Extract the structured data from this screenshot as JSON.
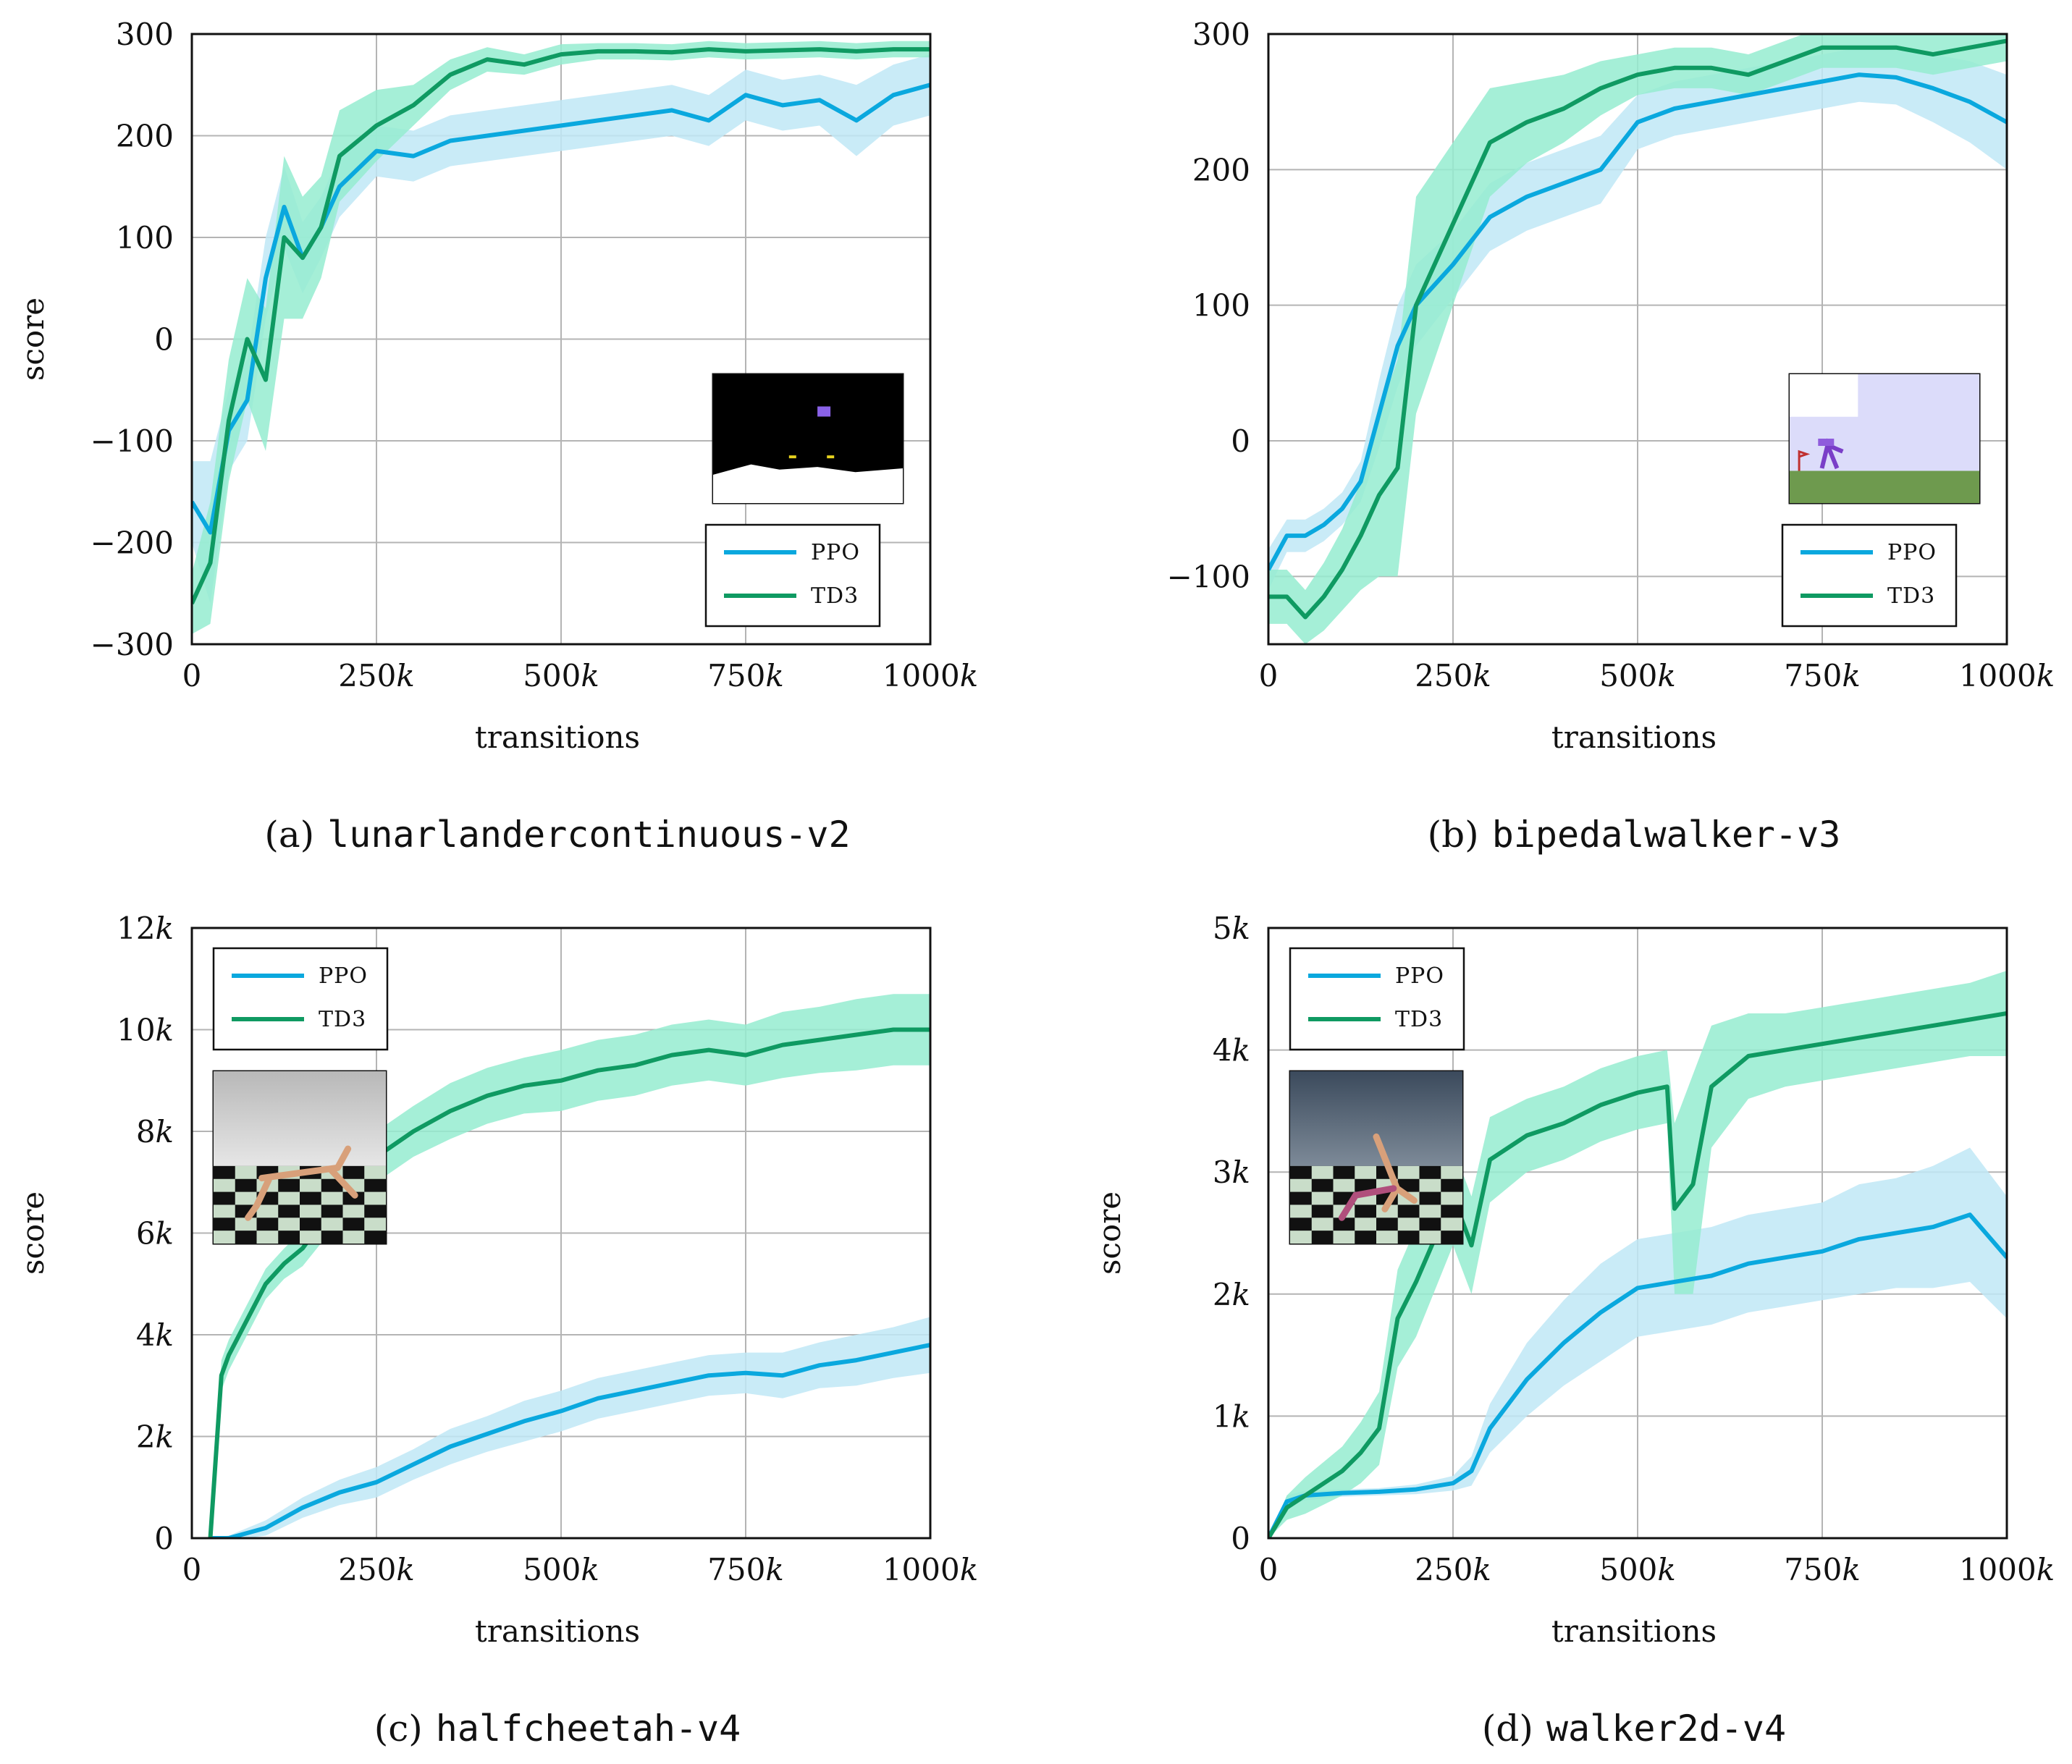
{
  "figure": {
    "colors": {
      "ppo": "#0aa8de",
      "ppo_band": "#bfe8f6",
      "td3": "#0f9a62",
      "td3_band": "#95ecd0",
      "grid": "#b4b4b4"
    }
  },
  "chart_data": [
    {
      "id": "a",
      "type": "line",
      "title": "",
      "caption_prefix": "(a)",
      "caption_env": "lunarlandercontinuous-v2",
      "xlabel": "transitions",
      "ylabel": "score",
      "xlim": [
        0,
        1000000
      ],
      "ylim": [
        -300,
        300
      ],
      "xticks": [
        0,
        250000,
        500000,
        750000,
        1000000
      ],
      "xtick_labels": [
        "0",
        "250k",
        "500k",
        "750k",
        "1000k"
      ],
      "yticks": [
        -300,
        -200,
        -100,
        0,
        100,
        200,
        300
      ],
      "ytick_labels": [
        "−300",
        "−200",
        "−100",
        "0",
        "100",
        "200",
        "300"
      ],
      "legend": {
        "position": "bottom-right",
        "entries": [
          "PPO",
          "TD3"
        ]
      },
      "inset": {
        "position": "right",
        "scene": "lunar lander"
      },
      "series": [
        {
          "name": "PPO",
          "color": "#0aa8de",
          "x": [
            0,
            25000,
            50000,
            75000,
            100000,
            125000,
            150000,
            175000,
            200000,
            250000,
            300000,
            350000,
            400000,
            450000,
            500000,
            550000,
            600000,
            650000,
            700000,
            750000,
            800000,
            850000,
            900000,
            950000,
            1000000
          ],
          "values": [
            -160,
            -190,
            -90,
            -60,
            60,
            130,
            80,
            110,
            150,
            185,
            180,
            195,
            200,
            205,
            210,
            215,
            220,
            225,
            215,
            240,
            230,
            235,
            215,
            240,
            250
          ],
          "band": [
            40,
            70,
            40,
            40,
            40,
            40,
            35,
            30,
            30,
            25,
            25,
            25,
            25,
            25,
            25,
            25,
            25,
            25,
            25,
            25,
            25,
            25,
            35,
            30,
            30
          ]
        },
        {
          "name": "TD3",
          "color": "#0f9a62",
          "x": [
            0,
            25000,
            50000,
            75000,
            100000,
            125000,
            150000,
            175000,
            200000,
            250000,
            300000,
            350000,
            400000,
            450000,
            500000,
            550000,
            600000,
            650000,
            700000,
            750000,
            800000,
            850000,
            900000,
            950000,
            1000000
          ],
          "values": [
            -260,
            -220,
            -80,
            0,
            -40,
            100,
            80,
            110,
            180,
            210,
            230,
            260,
            275,
            270,
            280,
            283,
            283,
            282,
            285,
            283,
            284,
            285,
            283,
            285,
            285
          ],
          "band": [
            30,
            60,
            60,
            60,
            70,
            80,
            60,
            50,
            45,
            35,
            20,
            15,
            12,
            10,
            10,
            8,
            8,
            8,
            8,
            8,
            8,
            8,
            8,
            8,
            8
          ]
        }
      ]
    },
    {
      "id": "b",
      "type": "line",
      "title": "",
      "caption_prefix": "(b)",
      "caption_env": "bipedalwalker-v3",
      "xlabel": "transitions",
      "ylabel": "",
      "xlim": [
        0,
        1000000
      ],
      "ylim": [
        -150,
        300
      ],
      "xticks": [
        0,
        250000,
        500000,
        750000,
        1000000
      ],
      "xtick_labels": [
        "0",
        "250k",
        "500k",
        "750k",
        "1000k"
      ],
      "yticks": [
        -100,
        0,
        100,
        200,
        300
      ],
      "ytick_labels": [
        "−100",
        "0",
        "100",
        "200",
        "300"
      ],
      "legend": {
        "position": "bottom-right",
        "entries": [
          "PPO",
          "TD3"
        ]
      },
      "inset": {
        "position": "right",
        "scene": "bipedal walker"
      },
      "series": [
        {
          "name": "PPO",
          "color": "#0aa8de",
          "x": [
            0,
            25000,
            50000,
            75000,
            100000,
            125000,
            150000,
            175000,
            200000,
            250000,
            300000,
            350000,
            400000,
            450000,
            500000,
            550000,
            600000,
            650000,
            700000,
            750000,
            800000,
            850000,
            900000,
            950000,
            1000000
          ],
          "values": [
            -95,
            -70,
            -70,
            -62,
            -50,
            -30,
            20,
            70,
            100,
            130,
            165,
            180,
            190,
            200,
            235,
            245,
            250,
            255,
            260,
            265,
            270,
            268,
            260,
            250,
            235
          ],
          "band": [
            15,
            12,
            12,
            12,
            12,
            15,
            25,
            30,
            30,
            25,
            25,
            25,
            25,
            25,
            20,
            20,
            20,
            20,
            20,
            20,
            20,
            20,
            25,
            30,
            35
          ]
        },
        {
          "name": "TD3",
          "color": "#0f9a62",
          "x": [
            0,
            25000,
            50000,
            75000,
            100000,
            125000,
            150000,
            175000,
            200000,
            250000,
            300000,
            350000,
            400000,
            450000,
            500000,
            550000,
            600000,
            650000,
            700000,
            750000,
            800000,
            850000,
            900000,
            950000,
            1000000
          ],
          "values": [
            -115,
            -115,
            -130,
            -115,
            -95,
            -70,
            -40,
            -20,
            100,
            160,
            220,
            235,
            245,
            260,
            270,
            275,
            275,
            270,
            280,
            290,
            290,
            290,
            285,
            290,
            295
          ],
          "band": [
            20,
            20,
            20,
            25,
            30,
            40,
            60,
            80,
            80,
            60,
            40,
            30,
            25,
            20,
            15,
            15,
            15,
            15,
            15,
            15,
            15,
            15,
            15,
            15,
            15
          ]
        }
      ]
    },
    {
      "id": "c",
      "type": "line",
      "title": "",
      "caption_prefix": "(c)",
      "caption_env": "halfcheetah-v4",
      "xlabel": "transitions",
      "ylabel": "score",
      "xlim": [
        0,
        1000000
      ],
      "ylim": [
        0,
        12000
      ],
      "xticks": [
        0,
        250000,
        500000,
        750000,
        1000000
      ],
      "xtick_labels": [
        "0",
        "250k",
        "500k",
        "750k",
        "1000k"
      ],
      "yticks": [
        0,
        2000,
        4000,
        6000,
        8000,
        10000,
        12000
      ],
      "ytick_labels": [
        "0",
        "2k",
        "4k",
        "6k",
        "8k",
        "10k",
        "12k"
      ],
      "legend": {
        "position": "top-left",
        "entries": [
          "PPO",
          "TD3"
        ]
      },
      "inset": {
        "position": "left",
        "scene": "half cheetah"
      },
      "series": [
        {
          "name": "PPO",
          "color": "#0aa8de",
          "x": [
            25000,
            50000,
            100000,
            150000,
            200000,
            250000,
            300000,
            350000,
            400000,
            450000,
            500000,
            550000,
            600000,
            650000,
            700000,
            750000,
            800000,
            850000,
            900000,
            950000,
            1000000
          ],
          "values": [
            0,
            0,
            200,
            600,
            900,
            1100,
            1450,
            1800,
            2050,
            2300,
            2500,
            2750,
            2900,
            3050,
            3200,
            3250,
            3200,
            3400,
            3500,
            3650,
            3800
          ],
          "band": [
            0,
            50,
            150,
            200,
            250,
            300,
            300,
            350,
            350,
            400,
            400,
            400,
            400,
            400,
            400,
            400,
            450,
            450,
            500,
            500,
            550
          ]
        },
        {
          "name": "TD3",
          "color": "#0f9a62",
          "x": [
            25000,
            40000,
            50000,
            75000,
            100000,
            125000,
            150000,
            175000,
            200000,
            250000,
            300000,
            350000,
            400000,
            450000,
            500000,
            550000,
            600000,
            650000,
            700000,
            750000,
            800000,
            850000,
            900000,
            950000,
            1000000
          ],
          "values": [
            0,
            3200,
            3600,
            4300,
            5000,
            5400,
            5700,
            6200,
            6700,
            7500,
            8000,
            8400,
            8700,
            8900,
            9000,
            9200,
            9300,
            9500,
            9600,
            9500,
            9700,
            9800,
            9900,
            10000,
            10000
          ],
          "band": [
            0,
            300,
            300,
            300,
            300,
            300,
            350,
            400,
            450,
            500,
            500,
            550,
            550,
            550,
            600,
            600,
            600,
            600,
            600,
            600,
            650,
            650,
            700,
            700,
            700
          ]
        }
      ]
    },
    {
      "id": "d",
      "type": "line",
      "title": "",
      "caption_prefix": "(d)",
      "caption_env": "walker2d-v4",
      "xlabel": "transitions",
      "ylabel": "score",
      "xlim": [
        0,
        1000000
      ],
      "ylim": [
        0,
        5000
      ],
      "xticks": [
        0,
        250000,
        500000,
        750000,
        1000000
      ],
      "xtick_labels": [
        "0",
        "250k",
        "500k",
        "750k",
        "1000k"
      ],
      "yticks": [
        0,
        1000,
        2000,
        3000,
        4000,
        5000
      ],
      "ytick_labels": [
        "0",
        "1k",
        "2k",
        "3k",
        "4k",
        "5k"
      ],
      "legend": {
        "position": "top-left",
        "entries": [
          "PPO",
          "TD3"
        ]
      },
      "inset": {
        "position": "left",
        "scene": "walker 2d"
      },
      "series": [
        {
          "name": "PPO",
          "color": "#0aa8de",
          "x": [
            0,
            25000,
            50000,
            100000,
            150000,
            200000,
            250000,
            275000,
            300000,
            350000,
            400000,
            450000,
            500000,
            550000,
            600000,
            650000,
            700000,
            750000,
            800000,
            850000,
            900000,
            950000,
            1000000
          ],
          "values": [
            0,
            300,
            350,
            370,
            380,
            400,
            450,
            550,
            900,
            1300,
            1600,
            1850,
            2050,
            2100,
            2150,
            2250,
            2300,
            2350,
            2450,
            2500,
            2550,
            2650,
            2300
          ],
          "band": [
            0,
            50,
            40,
            30,
            30,
            40,
            60,
            120,
            200,
            300,
            350,
            400,
            400,
            400,
            400,
            400,
            400,
            400,
            450,
            450,
            500,
            550,
            500
          ]
        },
        {
          "name": "TD3",
          "color": "#0f9a62",
          "x": [
            0,
            25000,
            50000,
            100000,
            125000,
            150000,
            175000,
            200000,
            250000,
            275000,
            300000,
            350000,
            400000,
            450000,
            500000,
            540000,
            550000,
            575000,
            600000,
            650000,
            700000,
            750000,
            800000,
            850000,
            900000,
            950000,
            1000000
          ],
          "values": [
            0,
            250,
            350,
            550,
            700,
            900,
            1800,
            2100,
            2800,
            2400,
            3100,
            3300,
            3400,
            3550,
            3650,
            3700,
            2700,
            2900,
            3700,
            3950,
            4000,
            4050,
            4100,
            4150,
            4200,
            4250,
            4300
          ],
          "band": [
            0,
            100,
            150,
            200,
            250,
            300,
            400,
            450,
            400,
            400,
            350,
            300,
            300,
            300,
            300,
            300,
            700,
            900,
            500,
            350,
            300,
            300,
            300,
            300,
            300,
            300,
            350
          ]
        }
      ]
    }
  ]
}
